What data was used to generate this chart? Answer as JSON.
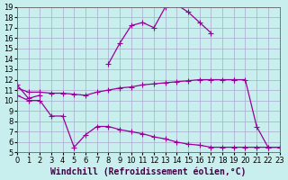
{
  "xlabel": "Windchill (Refroidissement éolien,°C)",
  "bg_color": "#c8eeee",
  "grid_color": "#aaaacc",
  "line_color": "#990099",
  "xmin": 0,
  "xmax": 23,
  "ymin": 5,
  "ymax": 19,
  "lines": [
    {
      "x": [
        0,
        1,
        2,
        3,
        4,
        5,
        6,
        7,
        8,
        9,
        10,
        11,
        12,
        13,
        14,
        15,
        16,
        17,
        18,
        19
      ],
      "y": [
        11.5,
        10.2,
        10.5,
        null,
        null,
        null,
        null,
        null,
        null,
        null,
        null,
        null,
        null,
        null,
        null,
        null,
        null,
        null,
        null,
        null
      ]
    },
    {
      "x": [
        0,
        1,
        2,
        3,
        4,
        5,
        6,
        7,
        8,
        9,
        10,
        11,
        12,
        13,
        14,
        15,
        16,
        17,
        18,
        19
      ],
      "y": [
        11.5,
        10.2,
        10.5,
        null,
        null,
        null,
        null,
        null,
        13.5,
        15.5,
        17.2,
        17.5,
        17.0,
        19.0,
        19.2,
        18.5,
        17.5,
        16.5,
        null,
        null
      ]
    },
    {
      "x": [
        0,
        1,
        2,
        3,
        4,
        5,
        6,
        7,
        8,
        9,
        10,
        11,
        12,
        13,
        14,
        15,
        16,
        17,
        18,
        19
      ],
      "y": [
        11.2,
        10.8,
        10.8,
        10.7,
        10.7,
        10.6,
        10.5,
        10.5,
        10.8,
        11.0,
        11.2,
        11.4,
        11.5,
        11.6,
        11.7,
        11.8,
        11.8,
        11.9,
        12.0,
        12.0
      ]
    },
    {
      "x": [
        0,
        1,
        2,
        3,
        4,
        5,
        6,
        7,
        8,
        9,
        10,
        11,
        12,
        13,
        14,
        15,
        16,
        17,
        18,
        19,
        20,
        21,
        22,
        23
      ],
      "y": [
        10.3,
        10.0,
        9.8,
        8.5,
        8.5,
        5.5,
        6.7,
        7.5,
        7.5,
        7.3,
        7.0,
        6.8,
        6.5,
        6.3,
        6.0,
        5.8,
        5.7,
        5.5,
        5.5,
        5.5,
        5.5,
        5.5,
        5.5,
        5.5
      ]
    }
  ],
  "lines2": [
    {
      "x": [
        0,
        1,
        2,
        3,
        4,
        5,
        6,
        7,
        8,
        9,
        10,
        11,
        12,
        13,
        14,
        15,
        16,
        17,
        18,
        19
      ],
      "y": [
        11.5,
        10.2,
        10.5,
        null,
        null,
        null,
        null,
        null,
        13.5,
        15.5,
        17.2,
        17.5,
        17.0,
        19.0,
        19.2,
        18.5,
        17.5,
        16.5,
        null,
        null
      ]
    }
  ],
  "yticks": [
    5,
    6,
    7,
    8,
    9,
    10,
    11,
    12,
    13,
    14,
    15,
    16,
    17,
    18,
    19
  ],
  "xticks": [
    0,
    1,
    2,
    3,
    4,
    5,
    6,
    7,
    8,
    9,
    10,
    11,
    12,
    13,
    14,
    15,
    16,
    17,
    18,
    19,
    20,
    21,
    22,
    23
  ],
  "tick_fontsize": 6,
  "xlabel_fontsize": 7,
  "marker_size": 2.5,
  "line_width": 0.9,
  "all_lines": [
    {
      "x": [
        0,
        1,
        2,
        3,
        4,
        5,
        6,
        7,
        8,
        9,
        10,
        11,
        12,
        13,
        14,
        15,
        16,
        17,
        18,
        19
      ],
      "y": [
        11.5,
        10.2,
        10.5,
        null,
        null,
        null,
        null,
        null,
        13.5,
        15.5,
        17.2,
        17.5,
        17.0,
        19.0,
        19.2,
        18.5,
        17.5,
        16.5,
        null,
        null
      ]
    },
    {
      "x": [
        0,
        1,
        2,
        3,
        4,
        5,
        6,
        7,
        8,
        9,
        10,
        11,
        12,
        13,
        14,
        15,
        16,
        17,
        18,
        19
      ],
      "y": [
        11.2,
        10.8,
        10.8,
        10.7,
        10.7,
        10.6,
        10.5,
        10.8,
        11.0,
        11.2,
        11.3,
        11.5,
        11.6,
        11.7,
        11.8,
        11.9,
        12.0,
        12.0,
        12.0,
        12.0
      ]
    },
    {
      "x": [
        0,
        1,
        2,
        3,
        4,
        5,
        6,
        7,
        8,
        9,
        10,
        11,
        12,
        13,
        14,
        15,
        16,
        17,
        18,
        19,
        20,
        21,
        22,
        23
      ],
      "y": [
        10.5,
        10.0,
        10.0,
        8.5,
        8.5,
        5.5,
        6.7,
        7.5,
        7.5,
        7.2,
        7.0,
        6.8,
        6.5,
        6.3,
        6.0,
        5.8,
        5.7,
        5.5,
        5.5,
        5.5,
        5.5,
        5.5,
        5.5,
        5.5
      ]
    },
    {
      "x": [
        19,
        20,
        21,
        22,
        23
      ],
      "y": [
        12.0,
        12.0,
        7.5,
        5.5,
        5.5
      ]
    }
  ]
}
